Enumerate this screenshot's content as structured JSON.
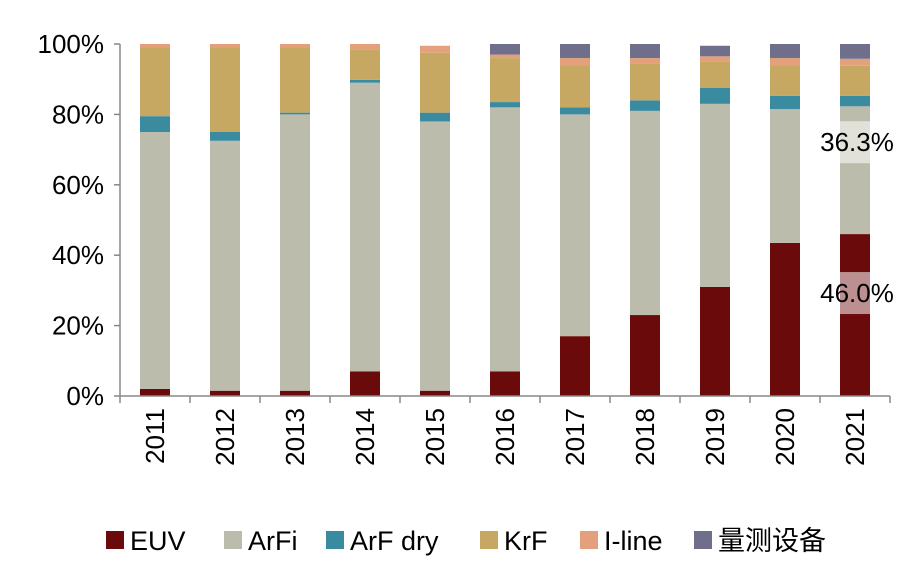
{
  "chart_data": {
    "type": "bar",
    "stacked": true,
    "title": "",
    "xlabel": "",
    "ylabel": "",
    "ylim": [
      0,
      100
    ],
    "y_ticks": [
      "0%",
      "20%",
      "40%",
      "60%",
      "80%",
      "100%"
    ],
    "categories": [
      "2011",
      "2012",
      "2013",
      "2014",
      "2015",
      "2016",
      "2017",
      "2018",
      "2019",
      "2020",
      "2021"
    ],
    "series": [
      {
        "name": "EUV",
        "color": "#6b0a0a",
        "values": [
          2,
          1.5,
          1.5,
          7,
          1.5,
          7,
          17,
          23,
          31,
          43.5,
          46
        ]
      },
      {
        "name": "ArFi",
        "color": "#bcbcad",
        "values": [
          73,
          71,
          78.5,
          82,
          76.5,
          75,
          63,
          58,
          52,
          38,
          36.3
        ]
      },
      {
        "name": "ArF dry",
        "color": "#3a8ba0",
        "values": [
          4.5,
          2.5,
          0.5,
          0.8,
          2.5,
          1.5,
          2,
          3,
          4.5,
          3.8,
          3
        ]
      },
      {
        "name": "KrF",
        "color": "#c6a862",
        "values": [
          19.5,
          24,
          18.5,
          8.7,
          17,
          12.5,
          12,
          10.5,
          7.5,
          8.7,
          8.5
        ]
      },
      {
        "name": "I-line",
        "color": "#e3a07a",
        "values": [
          1,
          1,
          1,
          1.5,
          2,
          1,
          2,
          1.5,
          1.5,
          2,
          2
        ]
      },
      {
        "name": "量测设备",
        "color": "#6f6f8c",
        "values": [
          0,
          0,
          0,
          0,
          0,
          3,
          4,
          4,
          3,
          4,
          4.2
        ]
      }
    ],
    "annotations": [
      {
        "text": "36.3%",
        "category": "2021",
        "series": "ArFi"
      },
      {
        "text": "46.0%",
        "category": "2021",
        "series": "EUV"
      }
    ],
    "legend_position": "bottom"
  }
}
